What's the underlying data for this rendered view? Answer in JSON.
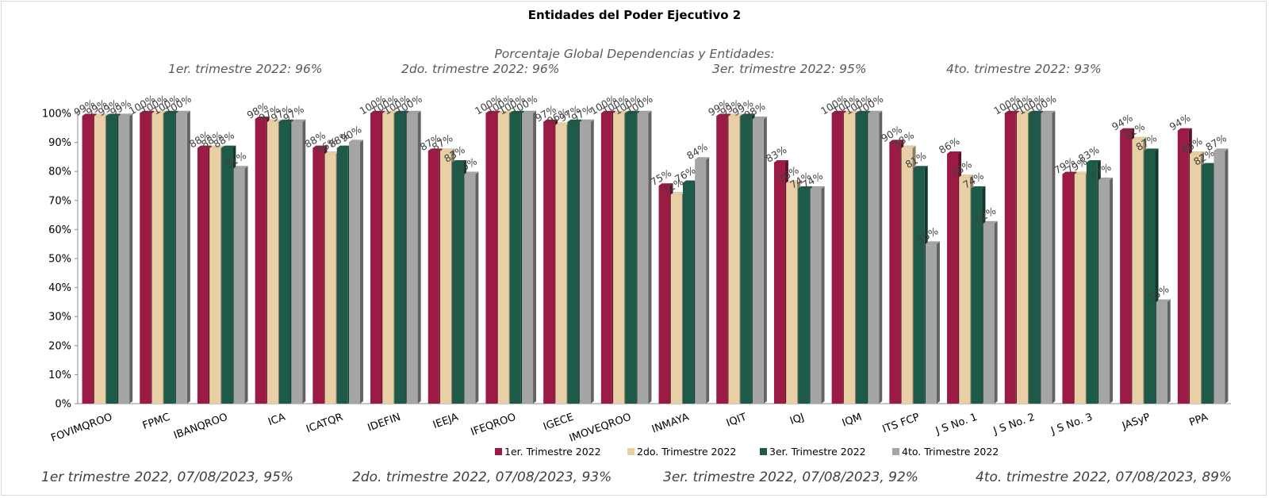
{
  "chart_data": {
    "type": "bar",
    "title": "Entidades del Poder Ejecutivo 2",
    "subtitle": "Porcentaje Global  Dependencias y Entidades:",
    "annotations_top": [
      "1er. trimestre 2022: 96%",
      "2do. trimestre 2022: 96%",
      "3er. trimestre 2022: 95%",
      "4to. trimestre 2022: 93%"
    ],
    "annotations_bottom": [
      "1er trimestre  2022,  07/08/2023, 95%",
      "2do. trimestre 2022, 07/08/2023, 93%",
      "3er. trimestre 2022, 07/08/2023, 92%",
      "4to. trimestre 2022, 07/08/2023, 89%"
    ],
    "categories": [
      "FOVIMQROO",
      "FPMC",
      "IBANQROO",
      "ICA",
      "ICATQR",
      "IDEFIN",
      "IEEJA",
      "IFEQROO",
      "IGECE",
      "IMOVEQROO",
      "INMAYA",
      "IQIT",
      "IQJ",
      "IQM",
      "ITS FCP",
      "J S No. 1",
      "J S No. 2",
      "J S No. 3",
      "JASyP",
      "PPA"
    ],
    "series": [
      {
        "name": "1er. Trimestre 2022",
        "color": "#9b1b45",
        "values": [
          99,
          100,
          88,
          98,
          88,
          100,
          87,
          100,
          97,
          100,
          75,
          99,
          83,
          100,
          90,
          86,
          100,
          79,
          94,
          94
        ]
      },
      {
        "name": "2do. Trimestre 2022",
        "color": "#e8cfa5",
        "values": [
          99,
          100,
          88,
          97,
          86,
          100,
          87,
          100,
          96,
          100,
          72,
          99,
          76,
          100,
          88,
          78,
          100,
          79,
          91,
          86
        ]
      },
      {
        "name": "3er. Trimestre 2022",
        "color": "#1e5a4a",
        "values": [
          99,
          100,
          88,
          97,
          88,
          100,
          83,
          100,
          97,
          100,
          76,
          99,
          74,
          100,
          81,
          74,
          100,
          83,
          87,
          82
        ]
      },
      {
        "name": "4to. Trimestre 2022",
        "color": "#a5a5a5",
        "values": [
          99,
          100,
          81,
          97,
          90,
          100,
          79,
          100,
          97,
          100,
          84,
          98,
          74,
          100,
          55,
          62,
          100,
          77,
          35,
          87
        ]
      }
    ],
    "yticks": [
      "0%",
      "10%",
      "20%",
      "30%",
      "40%",
      "50%",
      "60%",
      "70%",
      "80%",
      "90%",
      "100%"
    ],
    "ylim": [
      0,
      100
    ],
    "value_suffix": "%",
    "legend_position": "bottom",
    "grid": false
  }
}
